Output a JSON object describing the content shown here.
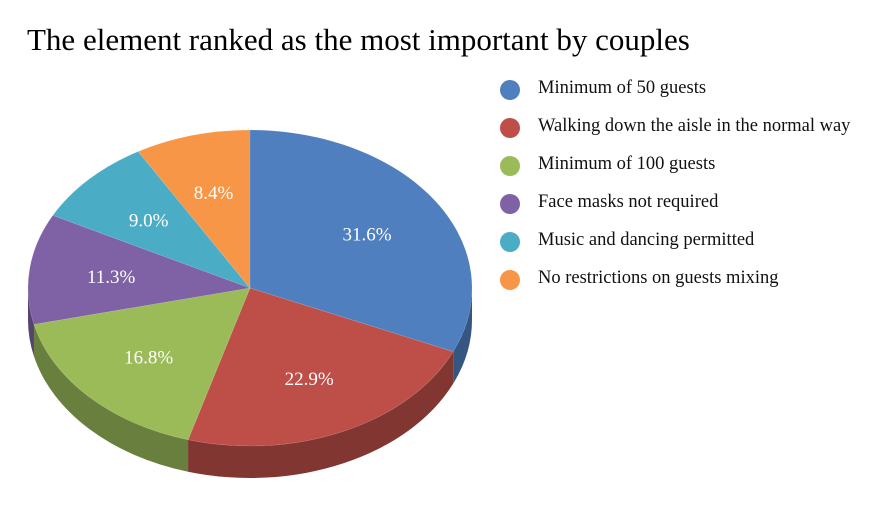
{
  "chart_data": {
    "type": "pie",
    "title": "The element ranked as the most important by couples",
    "labels": [
      "Minimum of 50 guests",
      "Walking down the aisle in the normal way",
      "Minimum of 100 guests",
      "Face masks not required",
      "Music and dancing permitted",
      "No restrictions on guests mixing"
    ],
    "values": [
      31.6,
      22.9,
      16.8,
      11.3,
      9.0,
      8.4
    ],
    "value_labels": [
      "31.6%",
      "22.9%",
      "16.8%",
      "11.3%",
      "9.0%",
      "8.4%"
    ],
    "colors": [
      "#4f7fbf",
      "#bd4f48",
      "#9bbb59",
      "#7f62a5",
      "#4bacc6",
      "#f79646"
    ],
    "legend_position": "right",
    "style": "3d"
  }
}
